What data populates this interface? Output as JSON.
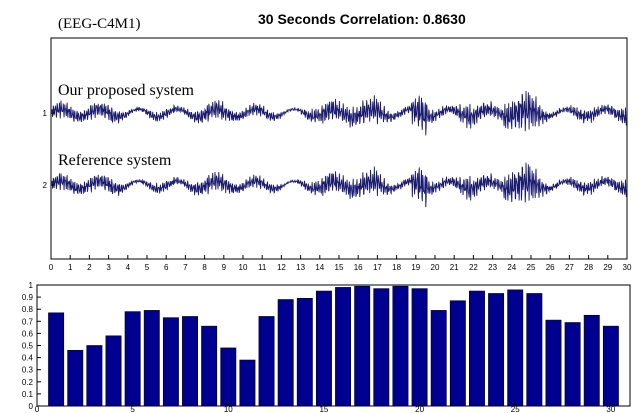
{
  "chart_data": [
    {
      "type": "line",
      "channel_label": "(EEG-C4M1)",
      "title": "30 Seconds Correlation: 0.8630",
      "xlim": [
        0,
        30
      ],
      "x_ticks": [
        0,
        1,
        2,
        3,
        4,
        5,
        6,
        7,
        8,
        9,
        10,
        11,
        12,
        13,
        14,
        15,
        16,
        17,
        18,
        19,
        20,
        21,
        22,
        23,
        24,
        25,
        26,
        27,
        28,
        29,
        30
      ],
      "y_ticks": [
        "1",
        "2"
      ],
      "series": [
        {
          "name": "Our proposed system",
          "row": 1
        },
        {
          "name": "Reference system",
          "row": 2
        }
      ],
      "colors": {
        "trace": "#1a1a6e",
        "axis": "#000000"
      }
    },
    {
      "type": "bar",
      "xlim": [
        0,
        31
      ],
      "ylim": [
        0,
        1
      ],
      "x_ticks": [
        "0",
        "5",
        "10",
        "15",
        "20",
        "25",
        "30"
      ],
      "y_ticks": [
        "0",
        "0.1",
        "0.2",
        "0.3",
        "0.4",
        "0.5",
        "0.6",
        "0.7",
        "0.8",
        "0.9",
        "1"
      ],
      "categories": [
        1,
        2,
        3,
        4,
        5,
        6,
        7,
        8,
        9,
        10,
        11,
        12,
        13,
        14,
        15,
        16,
        17,
        18,
        19,
        20,
        21,
        22,
        23,
        24,
        25,
        26,
        27,
        28,
        29,
        30
      ],
      "values": [
        0.77,
        0.46,
        0.5,
        0.58,
        0.78,
        0.79,
        0.73,
        0.74,
        0.66,
        0.48,
        0.38,
        0.74,
        0.88,
        0.89,
        0.95,
        0.98,
        0.99,
        0.97,
        0.99,
        0.97,
        0.79,
        0.87,
        0.95,
        0.93,
        0.96,
        0.93,
        0.71,
        0.69,
        0.75,
        0.66
      ],
      "colors": {
        "bar": "#000090",
        "bar_edge": "#000000",
        "axis": "#000000"
      }
    }
  ]
}
